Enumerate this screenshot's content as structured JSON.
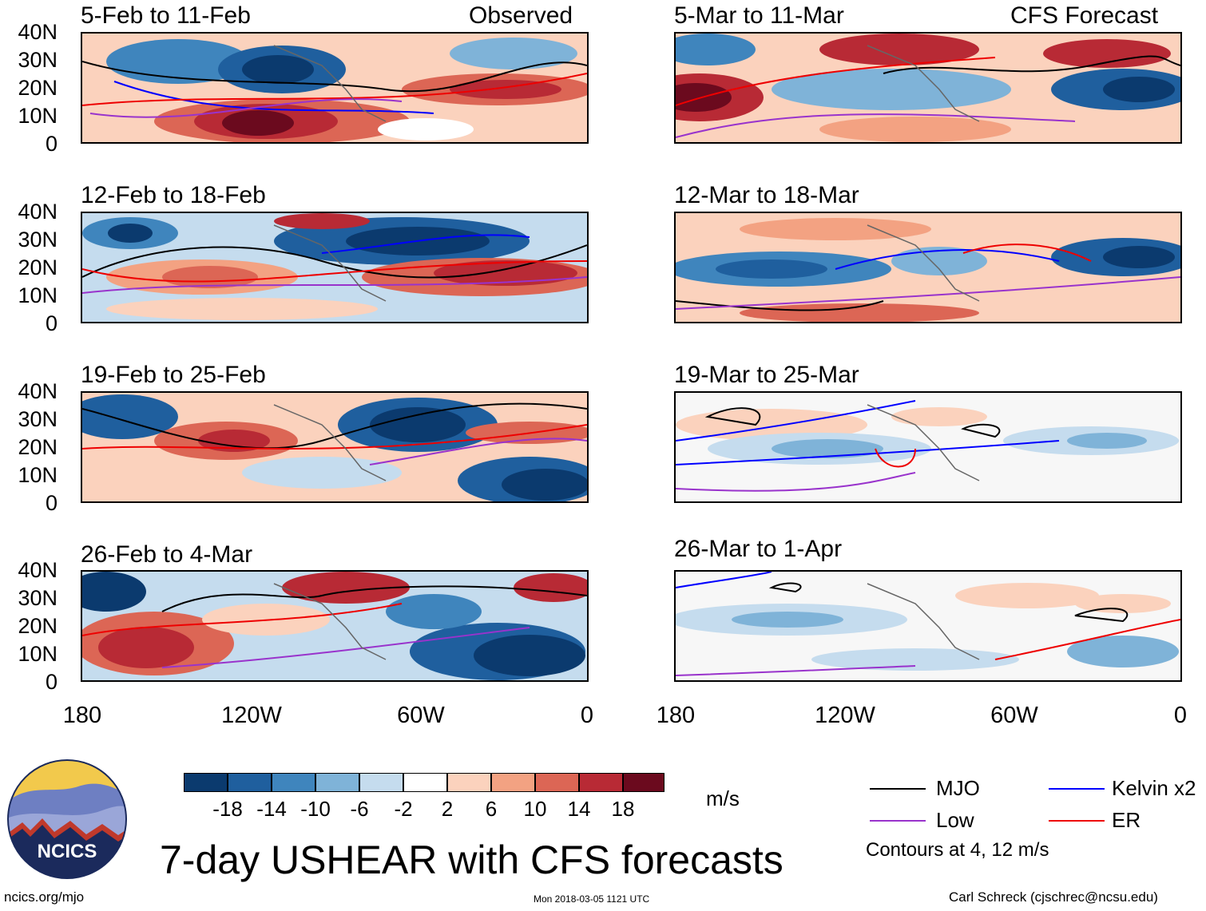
{
  "headers": {
    "observed": "Observed",
    "forecast": "CFS Forecast"
  },
  "panels": {
    "observed": [
      {
        "title": "5-Feb to 11-Feb"
      },
      {
        "title": "12-Feb to 18-Feb"
      },
      {
        "title": "19-Feb to 25-Feb"
      },
      {
        "title": "26-Feb to 4-Mar"
      }
    ],
    "forecast": [
      {
        "title": "5-Mar to 11-Mar"
      },
      {
        "title": "12-Mar to 18-Mar"
      },
      {
        "title": "19-Mar to 25-Mar"
      },
      {
        "title": "26-Mar to 1-Apr"
      }
    ]
  },
  "axes": {
    "lat_labels": [
      "40N",
      "30N",
      "20N",
      "10N",
      "0"
    ],
    "lon_labels": [
      "180",
      "120W",
      "60W",
      "0"
    ]
  },
  "colorbar": {
    "labels": [
      "-18",
      "-14",
      "-10",
      "-6",
      "-2",
      "2",
      "6",
      "10",
      "14",
      "18"
    ],
    "colors": [
      "#0b3a6e",
      "#1f5f9e",
      "#3f85bd",
      "#7fb3d8",
      "#c5dcee",
      "#ffffff",
      "#fbd2bd",
      "#f3a282",
      "#dc6655",
      "#b82a35",
      "#6b0a1e"
    ],
    "units": "m/s"
  },
  "legend": {
    "items": [
      {
        "label": "MJO",
        "color": "#000000"
      },
      {
        "label": "Kelvin x2",
        "color": "#0000ff"
      },
      {
        "label": "Low",
        "color": "#9933cc"
      },
      {
        "label": "ER",
        "color": "#ee0000"
      }
    ],
    "note": "Contours at 4, 12 m/s"
  },
  "logo": {
    "text": "NCICS"
  },
  "title": "7-day USHEAR with CFS forecasts",
  "footer": {
    "left": "ncics.org/mjo",
    "center": "Mon 2018-03-05 1121 UTC",
    "right": "Carl Schreck (cjschrec@ncsu.edu)"
  }
}
